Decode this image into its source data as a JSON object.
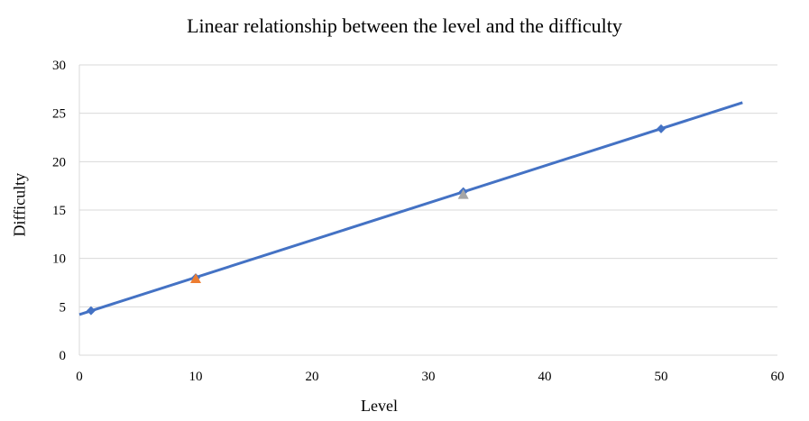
{
  "chart_data": {
    "type": "scatter",
    "title": "Linear relationship between the level and the difficulty",
    "xlabel": "Level",
    "ylabel": "Difficulty",
    "xlim": [
      0,
      60
    ],
    "ylim": [
      0,
      30
    ],
    "xticks": [
      0,
      10,
      20,
      30,
      40,
      50,
      60
    ],
    "yticks": [
      0,
      5,
      10,
      15,
      20,
      25,
      30
    ],
    "grid": "horizontal",
    "series": [
      {
        "marker": "diamond",
        "color": "#4472C4",
        "x": [
          1,
          10,
          33,
          50
        ],
        "y": [
          4.6,
          8.0,
          16.9,
          23.4
        ]
      },
      {
        "marker": "triangle",
        "color": "#ED7D31",
        "x": [
          10
        ],
        "y": [
          7.9
        ]
      },
      {
        "marker": "triangle",
        "color": "#A5A5A5",
        "x": [
          33
        ],
        "y": [
          16.6
        ]
      }
    ],
    "trendline": {
      "color": "#4472C4",
      "x": [
        0,
        57
      ],
      "y": [
        4.2,
        26.1
      ]
    }
  }
}
